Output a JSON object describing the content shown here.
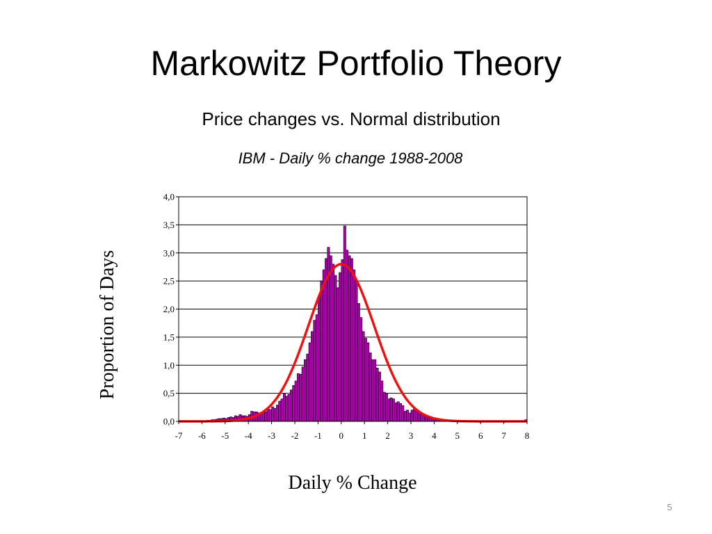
{
  "slide": {
    "title": "Markowitz Portfolio Theory",
    "subtitle": "Price changes vs. Normal distribution",
    "page_number": "5"
  },
  "chart_data": {
    "type": "bar",
    "title": "IBM - Daily % change 1988-2008",
    "xlabel": "Daily % Change",
    "ylabel": "Proportion of Days",
    "xlim": [
      -7,
      8
    ],
    "ylim": [
      0,
      4
    ],
    "x_ticks": [
      "-7",
      "-6",
      "-5",
      "-4",
      "-3",
      "-2",
      "-1",
      "0",
      "1",
      "2",
      "3",
      "4",
      "5",
      "6",
      "7",
      "8"
    ],
    "y_ticks": [
      "0,0",
      "0,5",
      "1,0",
      "1,5",
      "2,0",
      "2,5",
      "3,0",
      "3,5",
      "4,0"
    ],
    "grid": "horizontal",
    "bar_color": "#b000b0",
    "curve_color": "#ee1111",
    "histogram": {
      "bin_width": 0.1,
      "x_start": -7.0,
      "values": [
        0.01,
        0.01,
        0.01,
        0.01,
        0.01,
        0.01,
        0.01,
        0.01,
        0.01,
        0.01,
        0.01,
        0.01,
        0.02,
        0.02,
        0.03,
        0.03,
        0.04,
        0.05,
        0.05,
        0.06,
        0.05,
        0.07,
        0.08,
        0.07,
        0.1,
        0.09,
        0.12,
        0.1,
        0.1,
        0.09,
        0.12,
        0.18,
        0.17,
        0.17,
        0.15,
        0.16,
        0.17,
        0.17,
        0.22,
        0.21,
        0.26,
        0.23,
        0.29,
        0.36,
        0.4,
        0.5,
        0.45,
        0.48,
        0.56,
        0.64,
        0.72,
        0.85,
        0.84,
        0.97,
        1.1,
        1.2,
        1.4,
        1.6,
        1.8,
        1.9,
        2.2,
        2.5,
        2.7,
        2.9,
        3.1,
        2.95,
        2.8,
        2.6,
        2.38,
        2.65,
        2.88,
        3.48,
        3.05,
        2.95,
        2.9,
        2.7,
        2.5,
        2.1,
        1.85,
        1.6,
        1.48,
        1.4,
        1.22,
        1.1,
        1.1,
        0.95,
        0.88,
        0.72,
        0.52,
        0.5,
        0.4,
        0.42,
        0.4,
        0.33,
        0.35,
        0.32,
        0.28,
        0.18,
        0.2,
        0.15,
        0.2,
        0.22,
        0.18,
        0.16,
        0.14,
        0.1,
        0.08,
        0.06,
        0.05,
        0.05,
        0.04,
        0.03,
        0.03,
        0.03,
        0.02,
        0.02,
        0.02,
        0.02,
        0.01,
        0.01,
        0.01,
        0.01,
        0.01,
        0.01,
        0.01,
        0.01,
        0.01,
        0.01,
        0.01,
        0.01,
        0.01,
        0.01,
        0.01,
        0.01,
        0.01,
        0.01,
        0.01,
        0.01,
        0.01,
        0.01,
        0.01,
        0.01,
        0.01,
        0.01,
        0.01,
        0.01,
        0.01,
        0.01,
        0.01,
        0.03
      ]
    },
    "normal_curve": {
      "mean": 0.0,
      "peak": 2.8,
      "sd": 1.42
    }
  }
}
